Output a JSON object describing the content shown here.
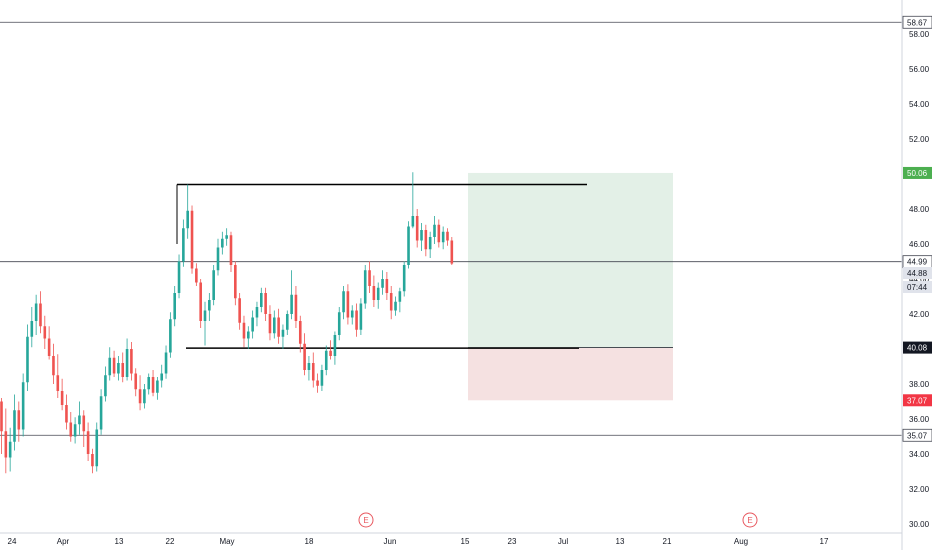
{
  "chart_data": {
    "type": "candlestick",
    "x_axis": {
      "labels": [
        "24",
        "Apr",
        "13",
        "22",
        "May",
        "18",
        "Jun",
        "15",
        "23",
        "Jul",
        "13",
        "21",
        "Aug",
        "17"
      ]
    },
    "y_axis": {
      "range": [
        29.8,
        59.0
      ],
      "labels": [
        "58.00",
        "56.00",
        "54.00",
        "52.00",
        "50.00",
        "48.00",
        "46.00",
        "44.00",
        "42.00",
        "40.00",
        "38.00",
        "36.00",
        "34.00",
        "32.00",
        "30.00"
      ],
      "values": [
        58,
        56,
        54,
        52,
        50,
        48,
        46,
        44,
        42,
        40,
        38,
        36,
        34,
        32,
        30
      ]
    },
    "horizontal_lines": [
      {
        "value": 58.67,
        "label": "58.67"
      },
      {
        "value": 44.99,
        "label": "44.99"
      },
      {
        "value": 35.07,
        "label": "35.07"
      }
    ],
    "price_badges": {
      "last_price": {
        "label": "44.88",
        "value": 44.88,
        "color": "#e0e3eb"
      },
      "countdown": {
        "label": "07:44"
      },
      "target": {
        "label": "50.06",
        "value": 50.06,
        "color": "#4caf50"
      },
      "entry": {
        "label": "40.08",
        "value": 40.08,
        "color": "#131722"
      },
      "stop": {
        "label": "37.07",
        "value": 37.07,
        "color": "#f23645"
      }
    },
    "range_box": {
      "top": 49.4,
      "bottom": 40.05
    },
    "position": {
      "entry": 40.08,
      "target": 50.06,
      "stop": 37.07
    },
    "events": [
      {
        "label": "E"
      },
      {
        "label": "E"
      }
    ],
    "colors": {
      "up": "#26a69a",
      "down": "#ef5350",
      "profit_zone": "#e3f0e7",
      "loss_zone": "#f5e1e1"
    },
    "candles": [
      [
        37.0,
        37.2,
        34.0,
        35.3
      ],
      [
        35.3,
        36.6,
        32.9,
        33.8
      ],
      [
        33.8,
        35.5,
        33.0,
        34.7
      ],
      [
        34.7,
        37.4,
        34.2,
        36.5
      ],
      [
        36.5,
        37.0,
        34.7,
        35.4
      ],
      [
        35.4,
        38.6,
        35.0,
        38.1
      ],
      [
        38.1,
        41.4,
        37.6,
        40.7
      ],
      [
        40.7,
        42.4,
        40.1,
        41.6
      ],
      [
        41.6,
        43.1,
        40.8,
        42.6
      ],
      [
        42.6,
        43.3,
        40.9,
        41.3
      ],
      [
        41.3,
        41.9,
        40.0,
        40.6
      ],
      [
        40.6,
        41.3,
        39.4,
        39.6
      ],
      [
        39.6,
        40.3,
        38.0,
        38.5
      ],
      [
        38.5,
        39.7,
        37.2,
        37.6
      ],
      [
        37.6,
        38.3,
        36.5,
        36.8
      ],
      [
        36.8,
        37.4,
        35.4,
        35.8
      ],
      [
        35.8,
        36.4,
        34.7,
        35.0
      ],
      [
        35.0,
        36.1,
        34.6,
        35.7
      ],
      [
        35.7,
        37.0,
        35.1,
        36.2
      ],
      [
        36.2,
        36.5,
        34.4,
        35.3
      ],
      [
        35.3,
        35.8,
        33.6,
        34.0
      ],
      [
        34.0,
        34.3,
        32.9,
        33.3
      ],
      [
        33.3,
        35.8,
        33.0,
        35.4
      ],
      [
        35.4,
        37.7,
        35.1,
        37.3
      ],
      [
        37.3,
        39.0,
        37.0,
        38.5
      ],
      [
        38.5,
        40.1,
        38.2,
        39.5
      ],
      [
        39.5,
        39.9,
        38.4,
        38.6
      ],
      [
        38.6,
        39.6,
        38.2,
        39.2
      ],
      [
        39.2,
        39.8,
        38.1,
        38.4
      ],
      [
        38.4,
        40.6,
        38.2,
        40.0
      ],
      [
        40.0,
        40.4,
        38.2,
        38.6
      ],
      [
        38.6,
        38.9,
        37.3,
        37.7
      ],
      [
        37.7,
        38.5,
        36.5,
        36.9
      ],
      [
        36.9,
        38.0,
        36.6,
        37.7
      ],
      [
        37.7,
        38.6,
        37.4,
        38.4
      ],
      [
        38.4,
        38.8,
        37.3,
        37.5
      ],
      [
        37.5,
        38.4,
        37.1,
        38.2
      ],
      [
        38.2,
        39.1,
        37.8,
        38.6
      ],
      [
        38.6,
        40.2,
        38.3,
        39.8
      ],
      [
        39.8,
        42.1,
        39.5,
        41.7
      ],
      [
        41.7,
        43.6,
        41.3,
        43.2
      ],
      [
        43.2,
        45.4,
        42.9,
        45.0
      ],
      [
        45.0,
        47.4,
        44.7,
        46.9
      ],
      [
        46.9,
        49.4,
        46.3,
        47.9
      ],
      [
        47.9,
        48.2,
        44.3,
        44.6
      ],
      [
        44.6,
        44.9,
        43.6,
        43.8
      ],
      [
        43.8,
        44.0,
        41.2,
        41.6
      ],
      [
        41.6,
        42.7,
        40.2,
        42.2
      ],
      [
        42.2,
        43.2,
        41.6,
        42.8
      ],
      [
        42.8,
        44.8,
        42.5,
        44.5
      ],
      [
        44.5,
        46.3,
        44.2,
        45.8
      ],
      [
        45.8,
        46.7,
        45.4,
        46.3
      ],
      [
        46.3,
        46.9,
        45.9,
        46.5
      ],
      [
        46.5,
        46.7,
        44.4,
        44.8
      ],
      [
        44.8,
        45.0,
        42.5,
        42.9
      ],
      [
        42.9,
        43.2,
        41.1,
        41.5
      ],
      [
        41.5,
        41.9,
        40.1,
        40.6
      ],
      [
        40.6,
        41.3,
        40.0,
        41.0
      ],
      [
        41.0,
        42.2,
        40.6,
        41.8
      ],
      [
        41.8,
        42.7,
        41.3,
        42.4
      ],
      [
        42.4,
        43.5,
        42.1,
        43.2
      ],
      [
        43.2,
        43.5,
        41.6,
        42.0
      ],
      [
        42.0,
        42.5,
        40.5,
        40.9
      ],
      [
        40.9,
        42.2,
        40.6,
        41.8
      ],
      [
        41.8,
        42.3,
        40.3,
        40.7
      ],
      [
        40.7,
        41.4,
        40.0,
        41.1
      ],
      [
        41.1,
        42.2,
        40.8,
        42.0
      ],
      [
        42.0,
        44.5,
        41.7,
        43.1
      ],
      [
        43.1,
        43.6,
        41.2,
        41.6
      ],
      [
        41.6,
        41.9,
        39.8,
        40.3
      ],
      [
        40.3,
        40.9,
        38.5,
        38.8
      ],
      [
        38.8,
        39.6,
        38.2,
        39.2
      ],
      [
        39.2,
        39.8,
        37.8,
        38.2
      ],
      [
        38.2,
        38.6,
        37.5,
        37.9
      ],
      [
        37.9,
        39.1,
        37.6,
        38.8
      ],
      [
        38.8,
        40.2,
        38.5,
        39.9
      ],
      [
        39.9,
        40.5,
        39.4,
        39.6
      ],
      [
        39.6,
        41.0,
        39.1,
        40.8
      ],
      [
        40.8,
        42.4,
        40.5,
        42.1
      ],
      [
        42.1,
        43.6,
        41.7,
        43.3
      ],
      [
        43.3,
        43.7,
        41.4,
        41.8
      ],
      [
        41.8,
        42.5,
        41.4,
        42.2
      ],
      [
        42.2,
        42.6,
        40.7,
        41.1
      ],
      [
        41.1,
        42.9,
        40.8,
        42.6
      ],
      [
        42.6,
        44.8,
        42.3,
        44.5
      ],
      [
        44.5,
        45.0,
        43.2,
        43.6
      ],
      [
        43.6,
        44.2,
        42.4,
        42.8
      ],
      [
        42.8,
        43.8,
        42.3,
        43.5
      ],
      [
        43.5,
        44.5,
        43.1,
        44.0
      ],
      [
        44.0,
        44.4,
        42.8,
        43.2
      ],
      [
        43.2,
        43.6,
        41.7,
        42.2
      ],
      [
        42.2,
        43.0,
        41.9,
        42.7
      ],
      [
        42.7,
        43.5,
        42.1,
        43.3
      ],
      [
        43.3,
        45.0,
        43.0,
        44.8
      ],
      [
        44.8,
        47.3,
        44.6,
        47.0
      ],
      [
        47.0,
        50.1,
        46.9,
        47.6
      ],
      [
        47.6,
        48.0,
        45.8,
        46.2
      ],
      [
        46.2,
        47.2,
        45.6,
        46.8
      ],
      [
        46.8,
        47.1,
        45.3,
        45.7
      ],
      [
        45.7,
        46.7,
        45.2,
        46.4
      ],
      [
        46.4,
        47.6,
        46.0,
        47.1
      ],
      [
        47.1,
        47.4,
        45.8,
        46.1
      ],
      [
        46.1,
        47.0,
        45.7,
        46.7
      ],
      [
        46.7,
        46.9,
        45.9,
        46.2
      ],
      [
        46.2,
        46.4,
        44.8,
        44.88
      ]
    ]
  }
}
